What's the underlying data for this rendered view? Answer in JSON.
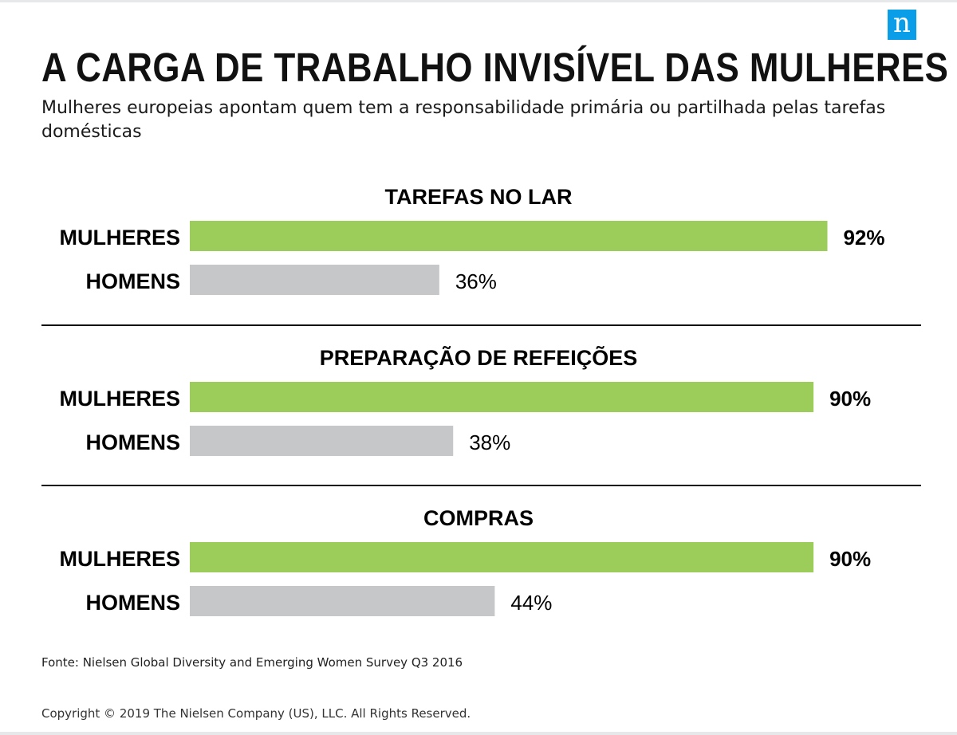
{
  "brand": {
    "logo_text": "n",
    "logo_color": "#0b9ee8"
  },
  "header": {
    "title": "A CARGA DE TRABALHO INVISÍVEL DAS MULHERES",
    "subtitle": "Mulheres europeias apontam quem tem a responsabilidade primária ou partilhada pelas tarefas domésticas"
  },
  "chart_data": {
    "type": "bar",
    "orientation": "horizontal",
    "title": "A CARGA DE TRABALHO INVISÍVEL DAS MULHERES",
    "subtitle": "Mulheres europeias apontam quem tem a responsabilidade primária ou partilhada pelas tarefas domésticas",
    "unit": "%",
    "xlim": [
      0,
      100
    ],
    "grid": false,
    "legend": "none",
    "colors": {
      "MULHERES": "#9ccd5a",
      "HOMENS": "#c6c7c9"
    },
    "groups": [
      {
        "title": "TAREFAS NO LAR",
        "bars": [
          {
            "label": "MULHERES",
            "value": 92,
            "display": "92%"
          },
          {
            "label": "HOMENS",
            "value": 36,
            "display": "36%"
          }
        ]
      },
      {
        "title": "PREPARAÇÃO DE REFEIÇÕES",
        "bars": [
          {
            "label": "MULHERES",
            "value": 90,
            "display": "90%"
          },
          {
            "label": "HOMENS",
            "value": 38,
            "display": "38%"
          }
        ]
      },
      {
        "title": "COMPRAS",
        "bars": [
          {
            "label": "MULHERES",
            "value": 90,
            "display": "90%"
          },
          {
            "label": "HOMENS",
            "value": 44,
            "display": "44%"
          }
        ]
      }
    ]
  },
  "footer": {
    "source": "Fonte: Nielsen Global Diversity and Emerging Women Survey Q3 2016",
    "copyright": "Copyright © 2019 The Nielsen Company (US), LLC. All Rights Reserved."
  }
}
